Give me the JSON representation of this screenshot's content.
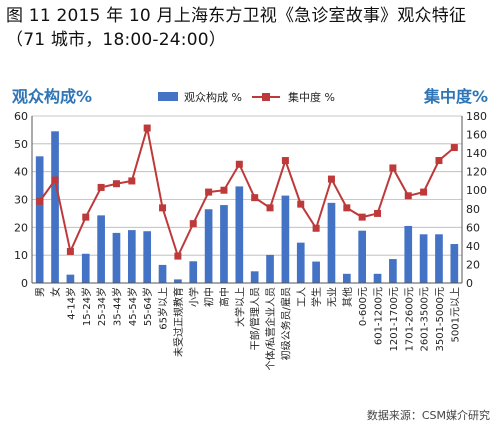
{
  "title": "图 11 2015 年 10 月上海东方卫视《急诊室故事》观众特征（71 城市，18:00-24:00）",
  "source": "数据来源：CSM媒介研究",
  "colors": {
    "bar": "#4472c4",
    "line": "#be3a3a",
    "axis_label": "#2e75b6",
    "grid": "#b7b7b7"
  },
  "chart_data": {
    "type": "bar+line",
    "categories": [
      "男",
      "女",
      "4-14岁",
      "15-24岁",
      "25-34岁",
      "35-44岁",
      "45-54岁",
      "55-64岁",
      "65岁以上",
      "未受过正规教育",
      "小学",
      "初中",
      "高中",
      "大学以上",
      "干部/管理人员",
      "个体/私营企业人员",
      "初级公务员/雇员",
      "工人",
      "学生",
      "无业",
      "其他",
      "0-600元",
      "601-1200元",
      "1201-1700元",
      "1701-2600元",
      "2601-3500元",
      "3501-5000元",
      "5001元以上"
    ],
    "series": [
      {
        "name": "观众构成 %",
        "type": "bar",
        "axis": "left",
        "values": [
          45.5,
          54.5,
          3,
          10.5,
          24.3,
          18,
          19,
          18.6,
          6.5,
          1.3,
          7.8,
          26.5,
          28,
          34.7,
          4.2,
          10.1,
          31.4,
          14.5,
          7.7,
          28.8,
          3.3,
          18.8,
          3.3,
          8.6,
          20.5,
          17.5,
          17.5,
          14
        ]
      },
      {
        "name": "集中度 %",
        "type": "line",
        "axis": "right",
        "values": [
          88,
          111,
          34,
          71,
          103,
          107,
          110,
          167,
          81,
          29,
          64,
          98,
          100,
          128,
          92,
          81,
          132,
          85,
          59,
          112,
          81,
          71,
          75,
          124,
          94,
          98,
          132,
          146
        ]
      }
    ],
    "y_left": {
      "label": "观众构成%",
      "min": 0,
      "max": 60,
      "ticks": [
        0,
        10,
        20,
        30,
        40,
        50,
        60
      ]
    },
    "y_right": {
      "label": "集中度%",
      "min": 0,
      "max": 180,
      "ticks": [
        0,
        20,
        40,
        60,
        80,
        100,
        120,
        140,
        160,
        180
      ]
    },
    "grid": true,
    "legend_position": "top-center"
  }
}
